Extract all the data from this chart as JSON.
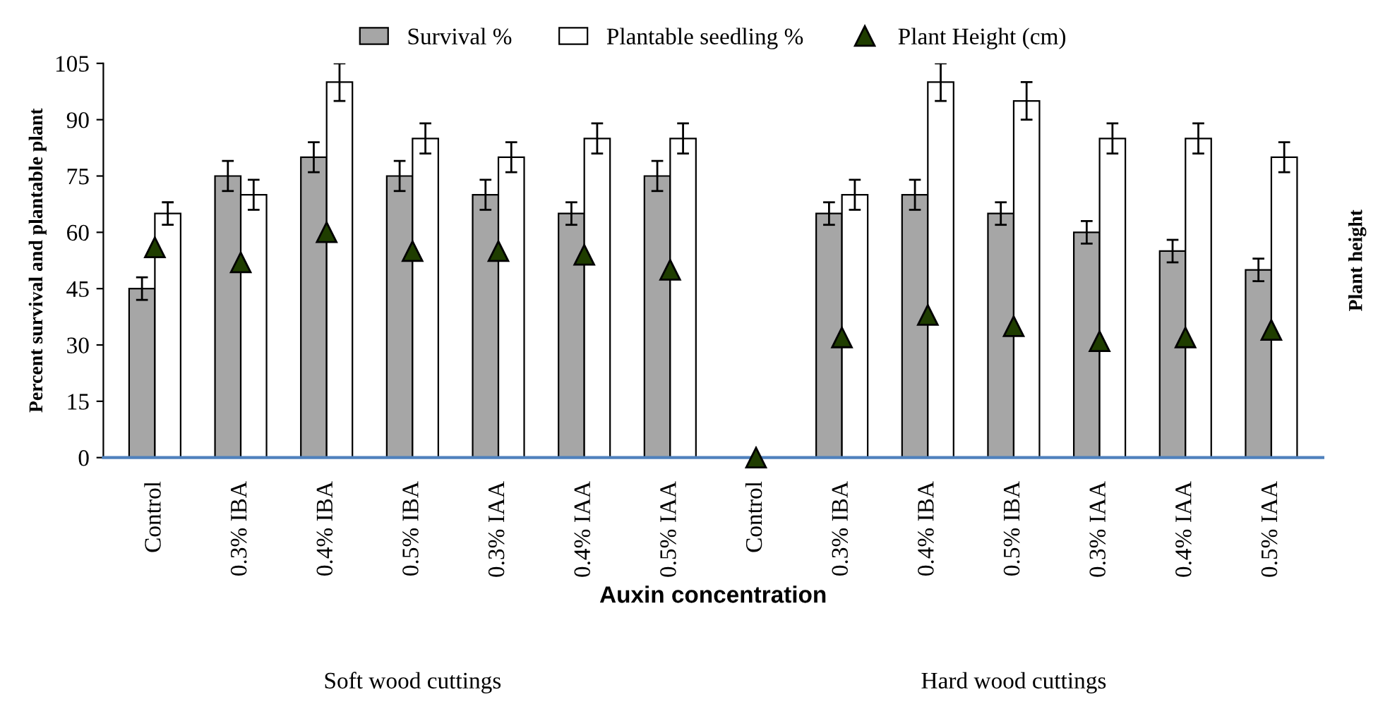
{
  "chart_data": {
    "type": "bar",
    "xlabel": "Auxin concentration",
    "ylabel": "Percent survival and plantable plant",
    "y2label": "Plant height",
    "categories": [
      "Control",
      "0.3% IBA",
      "0.4% IBA",
      "0.5% IBA",
      "0.3% IAA",
      "0.4% IAA",
      "0.5% IAA",
      "Control",
      "0.3% IBA",
      "0.4% IBA",
      "0.5% IBA",
      "0.3% IAA",
      "0.4% IAA",
      "0.5% IAA"
    ],
    "series": [
      {
        "name": "Survival %",
        "color": "#a6a6a6",
        "values": [
          45,
          75,
          80,
          75,
          70,
          65,
          75,
          null,
          65,
          70,
          65,
          60,
          55,
          50
        ],
        "errors": [
          3,
          4,
          4,
          4,
          4,
          3,
          4,
          null,
          3,
          4,
          3,
          3,
          3,
          3
        ]
      },
      {
        "name": "Plantable seedling %",
        "color": "#ffffff",
        "values": [
          65,
          70,
          100,
          85,
          80,
          85,
          85,
          null,
          70,
          100,
          95,
          85,
          85,
          80
        ],
        "errors": [
          3,
          4,
          5,
          4,
          4,
          4,
          4,
          null,
          4,
          5,
          5,
          4,
          4,
          4
        ]
      },
      {
        "name": "Plant Height (cm)",
        "type": "scatter",
        "color": "#1f3d00",
        "marker": "triangle",
        "values": [
          56,
          52,
          60,
          55,
          55,
          54,
          50,
          0,
          32,
          38,
          35,
          31,
          32,
          34
        ]
      }
    ],
    "ylim": [
      0,
      105
    ],
    "yticks": [
      0,
      15,
      30,
      45,
      60,
      75,
      90,
      105
    ],
    "grid": false,
    "legend": "top",
    "annotations": [
      "Soft wood cuttings",
      "Hard wood cuttings"
    ]
  }
}
